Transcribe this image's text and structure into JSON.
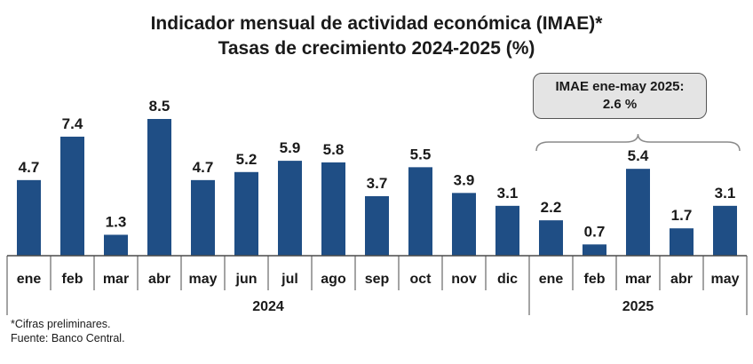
{
  "chart_data": {
    "type": "bar",
    "title": "Indicador mensual de actividad económica (IMAE)*",
    "subtitle": "Tasas de crecimiento 2024-2025 (%)",
    "categories": [
      "ene",
      "feb",
      "mar",
      "abr",
      "may",
      "jun",
      "jul",
      "ago",
      "sep",
      "oct",
      "nov",
      "dic",
      "ene",
      "feb",
      "mar",
      "abr",
      "may"
    ],
    "values": [
      4.7,
      7.4,
      1.3,
      8.5,
      4.7,
      5.2,
      5.9,
      5.8,
      3.7,
      5.5,
      3.9,
      3.1,
      2.2,
      0.7,
      5.4,
      1.7,
      3.1
    ],
    "value_labels": [
      "4.7",
      "7.4",
      "1.3",
      "8.5",
      "4.7",
      "5.2",
      "5.9",
      "5.8",
      "3.7",
      "5.5",
      "3.9",
      "3.1",
      "2.2",
      "0.7",
      "5.4",
      "1.7",
      "3.1"
    ],
    "year_groups": [
      {
        "label": "2024",
        "count": 12
      },
      {
        "label": "2025",
        "count": 5
      }
    ],
    "ylim": [
      0,
      8.5
    ],
    "bar_color": "#1f4e85",
    "grid": false,
    "annotation": {
      "line1": "IMAE ene-may 2025:",
      "line2": "2.6 %"
    }
  },
  "footnotes": {
    "note": "*Cifras preliminares.",
    "source": "Fuente: Banco Central."
  }
}
